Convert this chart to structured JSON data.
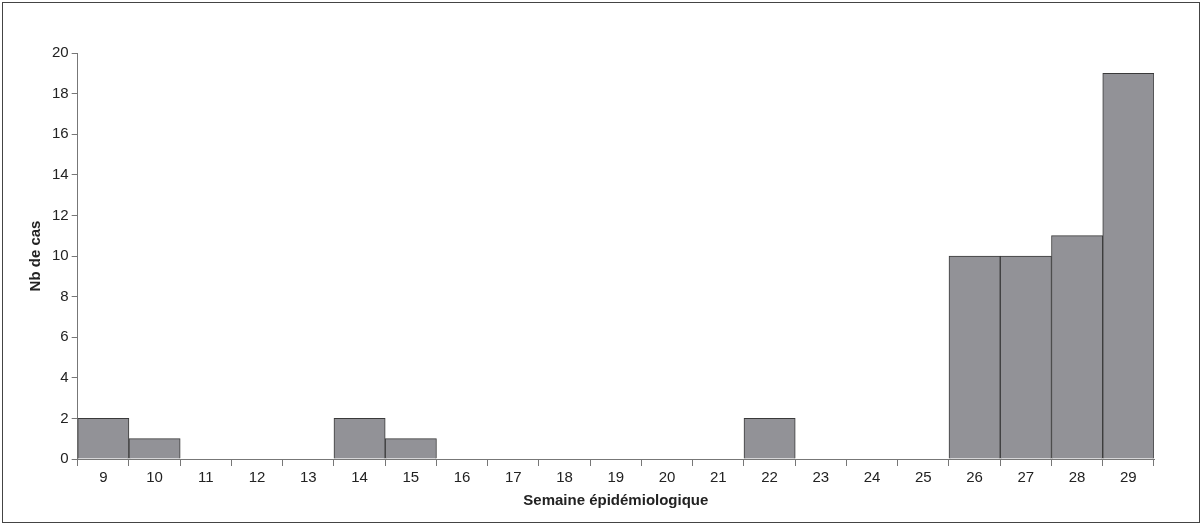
{
  "chart_data": {
    "type": "bar",
    "xlabel": "Semaine épidémiologique",
    "ylabel": "Nb de cas",
    "categories": [
      "9",
      "10",
      "11",
      "12",
      "13",
      "14",
      "15",
      "16",
      "17",
      "18",
      "19",
      "20",
      "21",
      "22",
      "23",
      "24",
      "25",
      "26",
      "27",
      "28",
      "29"
    ],
    "values": [
      2,
      1,
      0,
      0,
      0,
      2,
      1,
      0,
      0,
      0,
      0,
      0,
      0,
      2,
      0,
      0,
      0,
      10,
      10,
      11,
      19
    ],
    "color": "#929297",
    "ylim": [
      0,
      20
    ],
    "yticks": [
      0,
      2,
      4,
      6,
      8,
      10,
      12,
      14,
      16,
      18,
      20
    ],
    "grid": false,
    "legend": false
  }
}
